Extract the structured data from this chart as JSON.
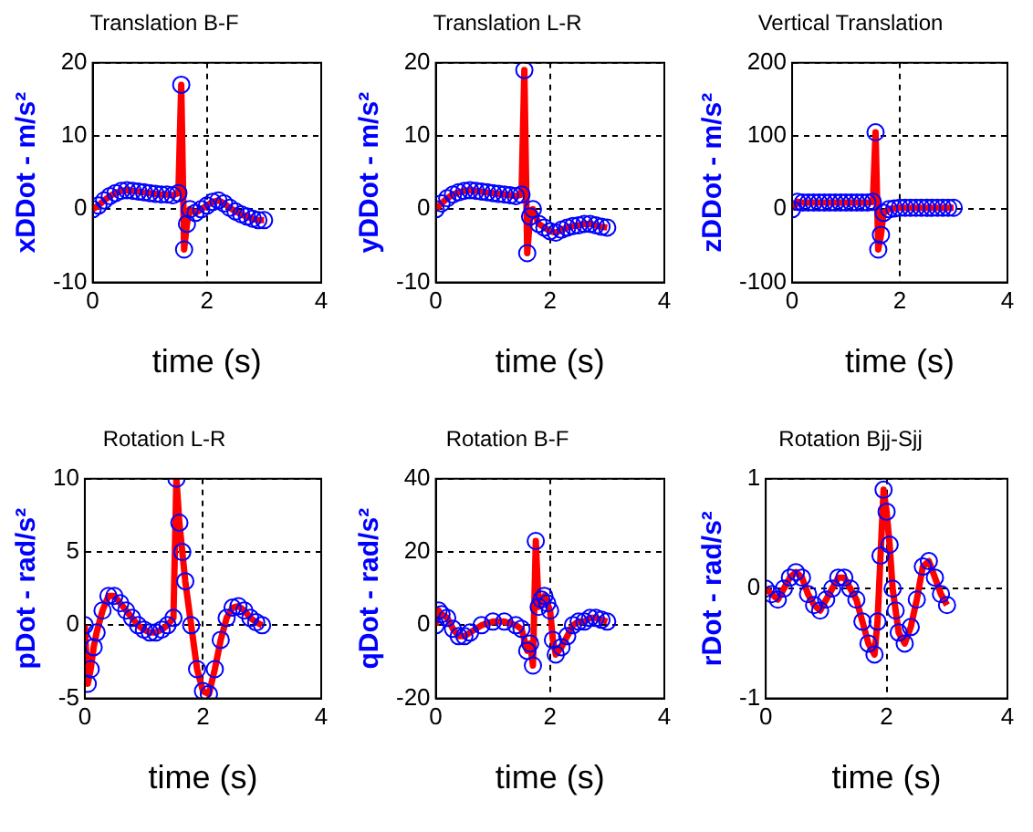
{
  "chart_data": [
    {
      "type": "line",
      "title": "Translation B-F",
      "xlabel": "time (s)",
      "ylabel": "xDDot - m/s²",
      "xlim": [
        0,
        4
      ],
      "xticks": [
        0,
        2,
        4
      ],
      "ylim": [
        -10,
        20
      ],
      "yticks": [
        -10,
        0,
        10,
        20
      ],
      "grid": true,
      "x": [
        0,
        0.1,
        0.2,
        0.3,
        0.4,
        0.5,
        0.6,
        0.7,
        0.8,
        0.9,
        1.0,
        1.1,
        1.2,
        1.3,
        1.4,
        1.5,
        1.55,
        1.6,
        1.65,
        1.7,
        1.8,
        1.9,
        2.0,
        2.1,
        2.2,
        2.3,
        2.4,
        2.5,
        2.6,
        2.7,
        2.8,
        2.9,
        3.0
      ],
      "series": [
        {
          "type": "line",
          "marker": "none",
          "color": "#ff0000",
          "values": [
            0,
            0.5,
            1.2,
            1.8,
            2.2,
            2.5,
            2.6,
            2.5,
            2.4,
            2.3,
            2.2,
            2.1,
            2.0,
            2.0,
            1.9,
            2.2,
            17,
            -5.5,
            -2,
            0,
            -0.5,
            0,
            0.5,
            1,
            1.2,
            0.8,
            0.2,
            -0.3,
            -0.7,
            -1,
            -1.3,
            -1.5,
            -1.5
          ]
        },
        {
          "type": "scatter",
          "marker": "circle",
          "color": "#0000ff",
          "values": [
            0,
            0.5,
            1.2,
            1.8,
            2.2,
            2.5,
            2.6,
            2.5,
            2.4,
            2.3,
            2.2,
            2.1,
            2.0,
            2.0,
            1.9,
            2.2,
            17,
            -5.5,
            -2,
            0,
            -0.5,
            0,
            0.5,
            1,
            1.2,
            0.8,
            0.2,
            -0.3,
            -0.7,
            -1,
            -1.3,
            -1.5,
            -1.5
          ]
        }
      ]
    },
    {
      "type": "line",
      "title": "Translation L-R",
      "xlabel": "time (s)",
      "ylabel": "yDDot - m/s²",
      "xlim": [
        0,
        4
      ],
      "xticks": [
        0,
        2,
        4
      ],
      "ylim": [
        -10,
        20
      ],
      "yticks": [
        -10,
        0,
        10,
        20
      ],
      "grid": true,
      "x": [
        0,
        0.1,
        0.2,
        0.3,
        0.4,
        0.5,
        0.6,
        0.7,
        0.8,
        0.9,
        1.0,
        1.1,
        1.2,
        1.3,
        1.4,
        1.5,
        1.55,
        1.6,
        1.65,
        1.7,
        1.8,
        1.9,
        2.0,
        2.1,
        2.2,
        2.3,
        2.4,
        2.5,
        2.6,
        2.7,
        2.8,
        2.9,
        3.0
      ],
      "series": [
        {
          "type": "line",
          "marker": "none",
          "color": "#ff0000",
          "values": [
            0,
            0.8,
            1.5,
            2,
            2.3,
            2.5,
            2.6,
            2.5,
            2.4,
            2.3,
            2.2,
            2.1,
            2.0,
            1.9,
            1.8,
            2.0,
            19,
            -6,
            -1,
            0,
            -2,
            -2.5,
            -3,
            -3.2,
            -2.8,
            -2.5,
            -2.3,
            -2.2,
            -2.0,
            -2.0,
            -2.2,
            -2.4,
            -2.5
          ]
        },
        {
          "type": "scatter",
          "marker": "circle",
          "color": "#0000ff",
          "values": [
            0,
            0.8,
            1.5,
            2,
            2.3,
            2.5,
            2.6,
            2.5,
            2.4,
            2.3,
            2.2,
            2.1,
            2.0,
            1.9,
            1.8,
            2.0,
            19,
            -6,
            -1,
            0,
            -2,
            -2.5,
            -3,
            -3.2,
            -2.8,
            -2.5,
            -2.3,
            -2.2,
            -2.0,
            -2.0,
            -2.2,
            -2.4,
            -2.5
          ]
        }
      ]
    },
    {
      "type": "line",
      "title": "Vertical Translation",
      "xlabel": "time (s)",
      "ylabel": "zDDot - m/s²",
      "xlim": [
        0,
        4
      ],
      "xticks": [
        0,
        2,
        4
      ],
      "ylim": [
        -100,
        200
      ],
      "yticks": [
        -100,
        0,
        100,
        200
      ],
      "grid": true,
      "x": [
        0,
        0.1,
        0.2,
        0.3,
        0.4,
        0.5,
        0.6,
        0.7,
        0.8,
        0.9,
        1.0,
        1.1,
        1.2,
        1.3,
        1.4,
        1.5,
        1.55,
        1.6,
        1.65,
        1.7,
        1.8,
        1.9,
        2.0,
        2.1,
        2.2,
        2.3,
        2.4,
        2.5,
        2.6,
        2.7,
        2.8,
        2.9,
        3.0
      ],
      "series": [
        {
          "type": "line",
          "marker": "none",
          "color": "#ff0000",
          "values": [
            0,
            10,
            9,
            9,
            9,
            9,
            9,
            9,
            9,
            9,
            9,
            9,
            9,
            9,
            9,
            10,
            105,
            -55,
            -35,
            -5,
            0,
            1,
            2,
            2,
            2,
            2,
            2,
            2,
            2,
            2,
            2,
            2,
            2
          ]
        },
        {
          "type": "scatter",
          "marker": "circle",
          "color": "#0000ff",
          "values": [
            0,
            10,
            9,
            9,
            9,
            9,
            9,
            9,
            9,
            9,
            9,
            9,
            9,
            9,
            9,
            10,
            105,
            -55,
            -35,
            -5,
            0,
            1,
            2,
            2,
            2,
            2,
            2,
            2,
            2,
            2,
            2,
            2,
            2
          ]
        }
      ]
    },
    {
      "type": "line",
      "title": "Rotation L-R",
      "xlabel": "time (s)",
      "ylabel": "pDot - rad/s²",
      "xlim": [
        0,
        4
      ],
      "xticks": [
        0,
        2,
        4
      ],
      "ylim": [
        -5,
        10
      ],
      "yticks": [
        -5,
        0,
        5,
        10
      ],
      "grid": true,
      "x": [
        0,
        0.05,
        0.1,
        0.15,
        0.2,
        0.3,
        0.4,
        0.5,
        0.6,
        0.7,
        0.8,
        0.9,
        1.0,
        1.1,
        1.2,
        1.3,
        1.4,
        1.5,
        1.55,
        1.6,
        1.65,
        1.7,
        1.8,
        1.9,
        2.0,
        2.1,
        2.2,
        2.3,
        2.4,
        2.5,
        2.6,
        2.7,
        2.8,
        2.9,
        3.0
      ],
      "series": [
        {
          "type": "line",
          "marker": "none",
          "color": "#ff0000",
          "values": [
            0,
            -4,
            -3,
            -1.5,
            -0.5,
            1,
            2,
            2,
            1.5,
            1,
            0.5,
            0,
            -0.3,
            -0.5,
            -0.5,
            -0.3,
            0,
            0.5,
            10,
            7,
            5,
            3,
            0,
            -3,
            -4.5,
            -4.7,
            -3,
            -1,
            0.5,
            1.2,
            1.3,
            1,
            0.5,
            0.2,
            0
          ]
        },
        {
          "type": "scatter",
          "marker": "circle",
          "color": "#0000ff",
          "values": [
            0,
            -4,
            -3,
            -1.5,
            -0.5,
            1,
            2,
            2,
            1.5,
            1,
            0.5,
            0,
            -0.3,
            -0.5,
            -0.5,
            -0.3,
            0,
            0.5,
            10,
            7,
            5,
            3,
            0,
            -3,
            -4.5,
            -4.7,
            -3,
            -1,
            0.5,
            1.2,
            1.3,
            1,
            0.5,
            0.2,
            0
          ]
        }
      ]
    },
    {
      "type": "line",
      "title": "Rotation B-F",
      "xlabel": "time (s)",
      "ylabel": "qDot - rad/s²",
      "xlim": [
        0,
        4
      ],
      "xticks": [
        0,
        2,
        4
      ],
      "ylim": [
        -20,
        40
      ],
      "yticks": [
        -20,
        0,
        20,
        40
      ],
      "grid": true,
      "x": [
        0,
        0.05,
        0.1,
        0.2,
        0.3,
        0.4,
        0.5,
        0.6,
        0.8,
        1.0,
        1.2,
        1.4,
        1.5,
        1.6,
        1.65,
        1.7,
        1.75,
        1.8,
        1.85,
        1.9,
        1.95,
        2.0,
        2.05,
        2.1,
        2.2,
        2.3,
        2.4,
        2.5,
        2.6,
        2.7,
        2.8,
        2.9,
        3.0
      ],
      "series": [
        {
          "type": "line",
          "marker": "none",
          "color": "#ff0000",
          "values": [
            0,
            4,
            3,
            2,
            -1,
            -3,
            -3,
            -2,
            0,
            1,
            1,
            0,
            -1,
            -7,
            -5,
            -11,
            23,
            5,
            7,
            8,
            6,
            4,
            -4,
            -8,
            -6,
            -3,
            0,
            1,
            1,
            2,
            2,
            1.5,
            1
          ]
        },
        {
          "type": "scatter",
          "marker": "circle",
          "color": "#0000ff",
          "values": [
            0,
            4,
            3,
            2,
            -1,
            -3,
            -3,
            -2,
            0,
            1,
            1,
            0,
            -1,
            -7,
            -5,
            -11,
            23,
            5,
            7,
            8,
            6,
            4,
            -4,
            -8,
            -6,
            -3,
            0,
            1,
            1,
            2,
            2,
            1.5,
            1
          ]
        }
      ]
    },
    {
      "type": "line",
      "title": "Rotation Bjj-Sjj",
      "xlabel": "time (s)",
      "ylabel": "rDot - rad/s²",
      "xlim": [
        0,
        4
      ],
      "xticks": [
        0,
        2,
        4
      ],
      "ylim": [
        -1,
        1
      ],
      "yticks": [
        -1,
        0,
        1
      ],
      "grid": true,
      "x": [
        0,
        0.1,
        0.2,
        0.3,
        0.4,
        0.5,
        0.6,
        0.7,
        0.8,
        0.9,
        1.0,
        1.1,
        1.2,
        1.3,
        1.4,
        1.5,
        1.6,
        1.7,
        1.8,
        1.85,
        1.9,
        1.95,
        2.0,
        2.05,
        2.1,
        2.15,
        2.2,
        2.3,
        2.4,
        2.5,
        2.6,
        2.7,
        2.8,
        2.9,
        3.0
      ],
      "series": [
        {
          "type": "line",
          "marker": "none",
          "color": "#ff0000",
          "values": [
            0,
            -0.05,
            -0.1,
            0,
            0.1,
            0.15,
            0.1,
            -0.05,
            -0.15,
            -0.2,
            -0.1,
            0,
            0.1,
            0.1,
            0,
            -0.1,
            -0.3,
            -0.5,
            -0.6,
            -0.3,
            0.3,
            0.9,
            0.7,
            0.4,
            0,
            -0.2,
            -0.4,
            -0.5,
            -0.35,
            -0.1,
            0.2,
            0.25,
            0.1,
            -0.05,
            -0.15
          ]
        },
        {
          "type": "scatter",
          "marker": "circle",
          "color": "#0000ff",
          "values": [
            0,
            -0.05,
            -0.1,
            0,
            0.1,
            0.15,
            0.1,
            -0.05,
            -0.15,
            -0.2,
            -0.1,
            0,
            0.1,
            0.1,
            0,
            -0.1,
            -0.3,
            -0.5,
            -0.6,
            -0.3,
            0.3,
            0.9,
            0.7,
            0.4,
            0,
            -0.2,
            -0.4,
            -0.5,
            -0.35,
            -0.1,
            0.2,
            0.25,
            0.1,
            -0.05,
            -0.15
          ]
        }
      ]
    }
  ]
}
